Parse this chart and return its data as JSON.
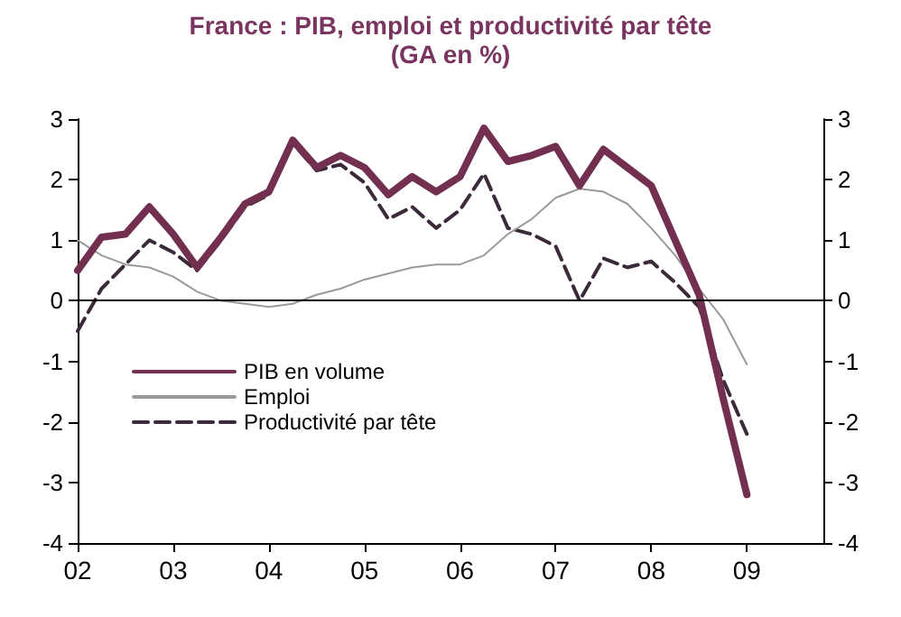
{
  "chart_data": {
    "type": "line",
    "title": "France : PIB, emploi et productivité par tête",
    "subtitle": "(GA en %)",
    "x": [
      2002,
      2002.25,
      2002.5,
      2002.75,
      2003,
      2003.25,
      2003.5,
      2003.75,
      2004,
      2004.25,
      2004.5,
      2004.75,
      2005,
      2005.25,
      2005.5,
      2005.75,
      2006,
      2006.25,
      2006.5,
      2006.75,
      2007,
      2007.25,
      2007.5,
      2007.75,
      2008,
      2008.25,
      2008.5,
      2008.75,
      2009
    ],
    "series": [
      {
        "name": "PIB en volume",
        "color": "#722f50",
        "line_style": "solid",
        "values": [
          0.5,
          1.05,
          1.1,
          1.55,
          1.1,
          0.55,
          1.05,
          1.6,
          1.8,
          2.65,
          2.2,
          2.4,
          2.2,
          1.75,
          2.05,
          1.8,
          2.05,
          2.85,
          2.3,
          2.4,
          2.55,
          1.9,
          2.5,
          2.2,
          1.9,
          1.0,
          0.1,
          -1.6,
          -3.2
        ]
      },
      {
        "name": "Emploi",
        "color": "#9a9a9a",
        "line_style": "solid",
        "values": [
          1.0,
          0.75,
          0.6,
          0.55,
          0.4,
          0.15,
          0.0,
          -0.05,
          -0.1,
          -0.05,
          0.1,
          0.2,
          0.35,
          0.45,
          0.55,
          0.6,
          0.6,
          0.75,
          1.1,
          1.35,
          1.7,
          1.85,
          1.8,
          1.6,
          1.2,
          0.75,
          0.2,
          -0.3,
          -1.05
        ]
      },
      {
        "name": "Productivité par tête",
        "color": "#3a2a3a",
        "line_style": "dashed",
        "values": [
          -0.5,
          0.2,
          0.6,
          1.0,
          0.8,
          0.5,
          1.0,
          1.55,
          1.75,
          2.6,
          2.15,
          2.25,
          1.95,
          1.35,
          1.55,
          1.2,
          1.5,
          2.1,
          1.2,
          1.1,
          0.9,
          0.0,
          0.7,
          0.55,
          0.65,
          0.3,
          -0.1,
          -1.3,
          -2.2
        ]
      }
    ],
    "xlim": [
      2002,
      2009.8
    ],
    "xticks": [
      {
        "value": 2002,
        "label": "02"
      },
      {
        "value": 2003,
        "label": "03"
      },
      {
        "value": 2004,
        "label": "04"
      },
      {
        "value": 2005,
        "label": "05"
      },
      {
        "value": 2006,
        "label": "06"
      },
      {
        "value": 2007,
        "label": "07"
      },
      {
        "value": 2008,
        "label": "08"
      },
      {
        "value": 2009,
        "label": "09"
      }
    ],
    "ylim": [
      -4,
      3
    ],
    "yticks": [
      -4,
      -3,
      -2,
      -1,
      0,
      1,
      2,
      3
    ],
    "y2lim": [
      -4,
      3
    ],
    "y2ticks": [
      -4,
      -3,
      -2,
      -1,
      0,
      1,
      2,
      3
    ],
    "ref_lines": [
      {
        "axis": "y",
        "value": 0,
        "label": null,
        "color": "#000000"
      }
    ],
    "grid": false,
    "legend": "bottom left",
    "marker": "none"
  }
}
